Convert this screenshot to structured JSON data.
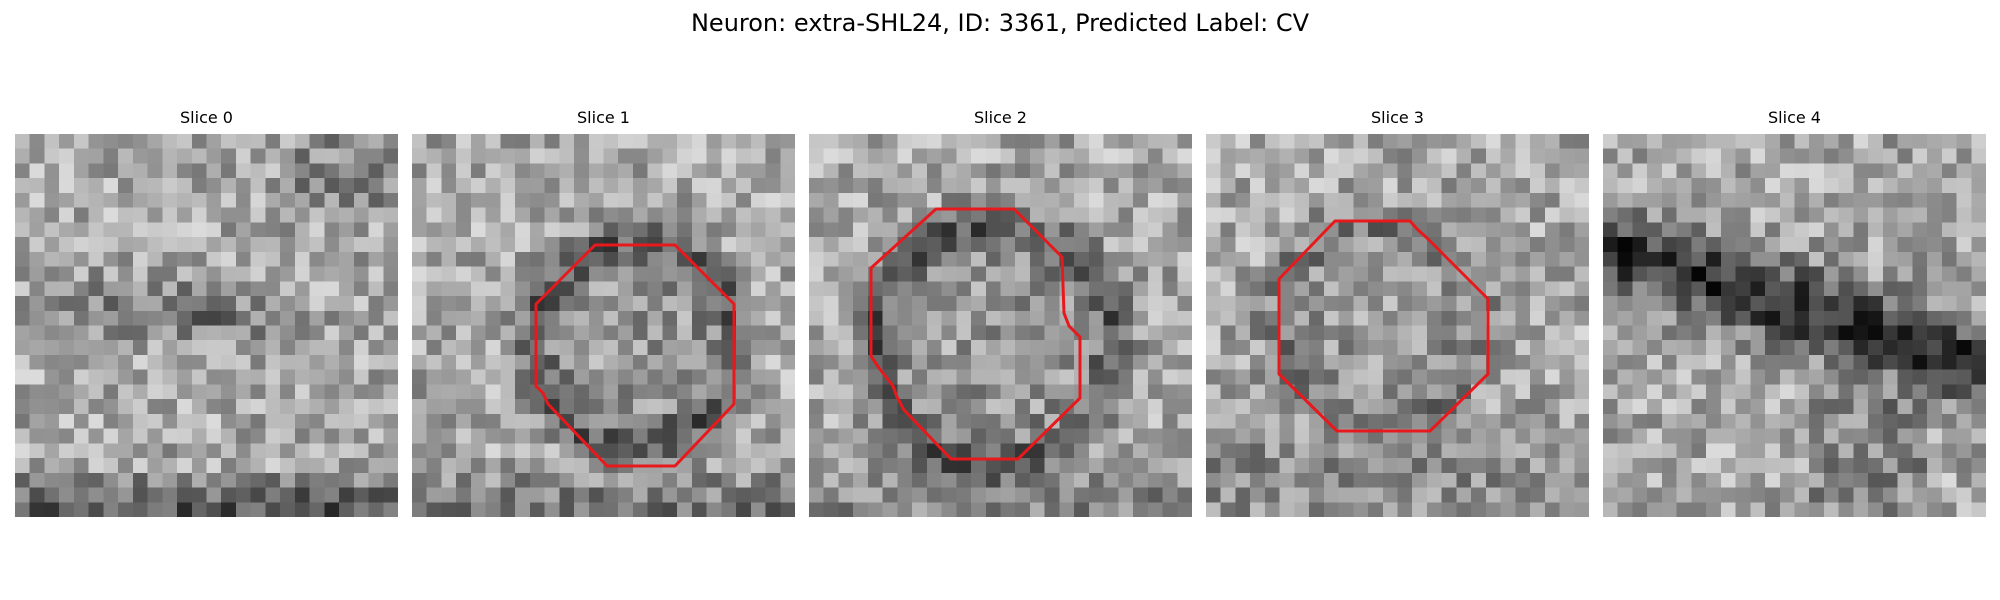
{
  "figure": {
    "title": "Neuron: extra-SHL24, ID: 3361, Predicted Label: CV"
  },
  "panels": [
    {
      "title": "Slice 0",
      "kind": "faint-diagonal-band",
      "has_contour": false
    },
    {
      "title": "Slice 1",
      "kind": "vesicle",
      "has_contour": true
    },
    {
      "title": "Slice 2",
      "kind": "vesicle-large",
      "has_contour": true
    },
    {
      "title": "Slice 3",
      "kind": "vesicle-faint",
      "has_contour": true
    },
    {
      "title": "Slice 4",
      "kind": "dark-diagonal-band",
      "has_contour": false
    }
  ],
  "colors": {
    "contour": "#e8191c",
    "background": "#ffffff"
  },
  "image": {
    "grid": 26,
    "colormap": "gray"
  }
}
